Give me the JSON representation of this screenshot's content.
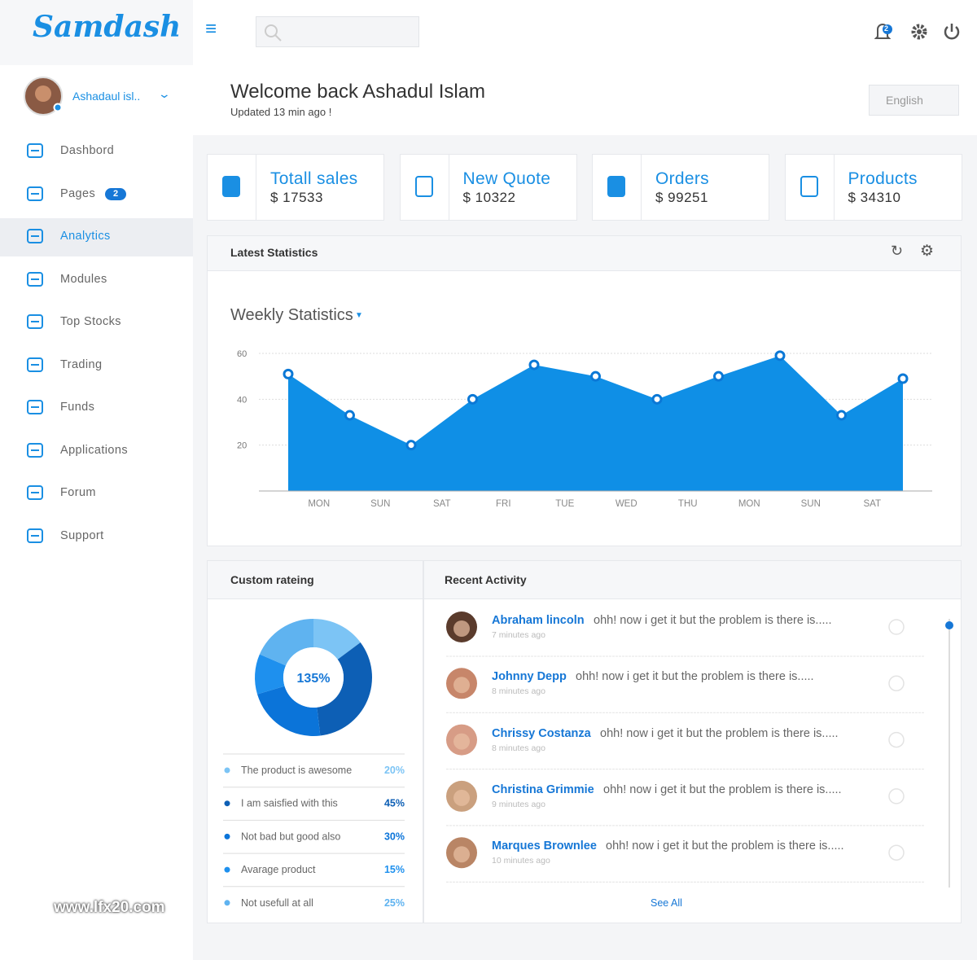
{
  "sidebar": {
    "logo": "Samdash",
    "user_name": "Ashadaul isl..",
    "menu": [
      {
        "label": "Dashbord"
      },
      {
        "label": "Pages",
        "badge": "2"
      },
      {
        "label": "Analytics",
        "active": true
      },
      {
        "label": "Modules"
      },
      {
        "label": "Top Stocks"
      },
      {
        "label": "Trading"
      },
      {
        "label": "Funds"
      },
      {
        "label": "Applications"
      },
      {
        "label": "Forum"
      },
      {
        "label": "Support"
      }
    ]
  },
  "topbar": {
    "notification_count": "2"
  },
  "welcome": {
    "title": "Welcome back Ashadul Islam",
    "subtitle": "Updated 13 min ago !",
    "language": "English"
  },
  "stats": [
    {
      "label": "Totall sales",
      "value": "$ 17533"
    },
    {
      "label": "New Quote",
      "value": "$ 10322"
    },
    {
      "label": "Orders",
      "value": "$ 99251"
    },
    {
      "label": "Products",
      "value": "$ 34310"
    }
  ],
  "statistics_panel": {
    "title": "Latest Statistics"
  },
  "chart_data": [
    {
      "type": "area",
      "title": "Weekly Statistics",
      "categories": [
        "MON",
        "SUN",
        "SAT",
        "FRI",
        "TUE",
        "WED",
        "THU",
        "MON",
        "SUN",
        "SAT",
        null
      ],
      "values": [
        51,
        33,
        20,
        40,
        55,
        50,
        40,
        50,
        59,
        33,
        49
      ],
      "color": "#0f8fe6",
      "ylim": [
        0,
        60
      ],
      "yticks": [
        20,
        40,
        60
      ],
      "grid": true
    },
    {
      "type": "donut",
      "title": "Custom rateing",
      "center_label": "135%",
      "categories": [
        "The product is awesome",
        "I am saisfied with this",
        "Not bad but good also",
        "Avarage product",
        "Not usefull at all"
      ],
      "values": [
        20,
        45,
        30,
        15,
        25
      ],
      "value_labels": [
        "20%",
        "45%",
        "30%",
        "15%",
        "25%"
      ],
      "colors": [
        "#7cc4f5",
        "#0d5fb5",
        "#0b74d9",
        "#1e90ee",
        "#5fb3f0"
      ]
    }
  ],
  "recent_activity": {
    "title": "Recent Activity",
    "items": [
      {
        "name": "Abraham lincoln",
        "message": "ohh! now i get it but the problem is there is.....",
        "time": "7 minutes ago"
      },
      {
        "name": "Johnny Depp",
        "message": "ohh! now i get it but the problem is there is.....",
        "time": "8 minutes ago"
      },
      {
        "name": "Chrissy Costanza",
        "message": "ohh! now i get it but the problem is there is.....",
        "time": "8 minutes ago"
      },
      {
        "name": "Christina Grimmie",
        "message": "ohh! now i get it but the problem is there is.....",
        "time": "9 minutes ago"
      },
      {
        "name": "Marques Brownlee",
        "message": "ohh! now i get it but the problem is there is.....",
        "time": "10 minutes ago"
      }
    ],
    "see_all": "See All"
  },
  "watermark": "www.lfx20.com"
}
